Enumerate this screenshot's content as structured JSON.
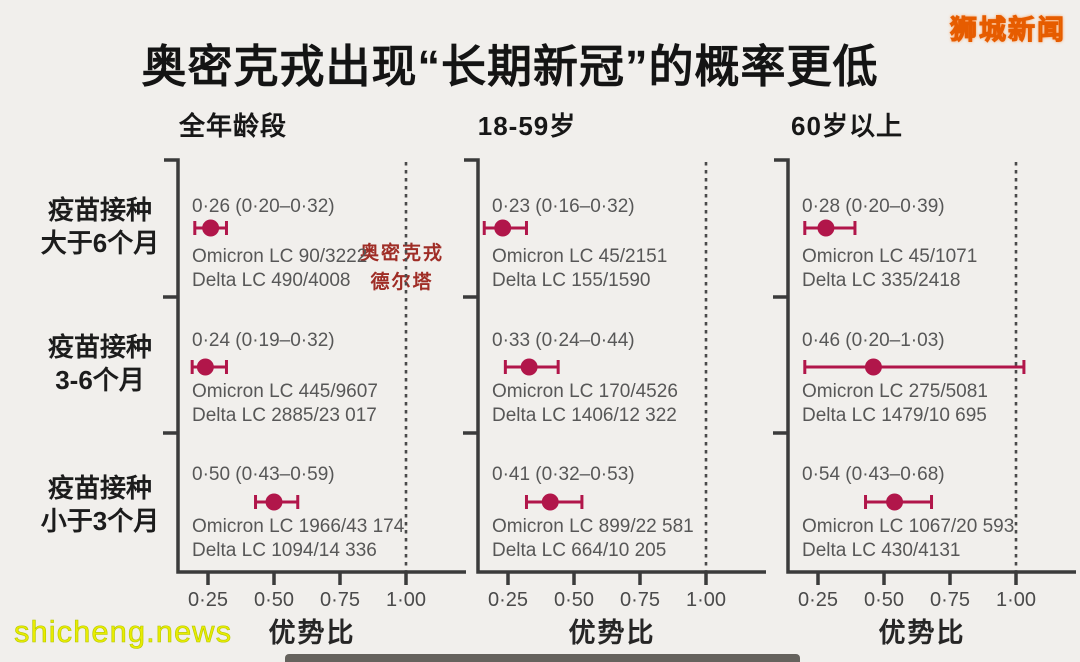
{
  "page": {
    "title": "奥密克戎出现“长期新冠”的概率更低",
    "watermark_top_right": "狮城新闻",
    "watermark_bottom_left": "shicheng.news"
  },
  "row_labels": [
    {
      "line1": "疫苗接种",
      "line2": "大于6个月"
    },
    {
      "line1": "疫苗接种",
      "line2": "3-6个月"
    },
    {
      "line1": "疫苗接种",
      "line2": "小于3个月"
    }
  ],
  "annotation": {
    "line1": "奥密克戎",
    "line2": "德尔塔"
  },
  "chart_data": {
    "type": "scatter",
    "subtype": "forest-plot",
    "title": "奥密克戎出现“长期新冠”的概率更低",
    "xlabel": "优势比",
    "ylabel": "",
    "x_ticks": [
      "0·25",
      "0·50",
      "0·75",
      "1·00"
    ],
    "x_tick_values": [
      0.25,
      0.5,
      0.75,
      1.0
    ],
    "reference_line": 1.0,
    "xlim": [
      0.14,
      1.22
    ],
    "grid": false,
    "colors": {
      "marker": "#b1164a",
      "axis": "#3b3b3b",
      "dashed": "#4a4a4a",
      "text": "#575757",
      "annotation": "#9f2d26"
    },
    "panels": [
      {
        "header": "全年龄段",
        "rows": [
          {
            "estimate_label": "0·26 (0·20–0·32)",
            "mid": 0.26,
            "lo": 0.2,
            "hi": 0.32,
            "omicron": "Omicron LC 90/3222",
            "delta": "Delta LC 490/4008"
          },
          {
            "estimate_label": "0·24 (0·19–0·32)",
            "mid": 0.24,
            "lo": 0.19,
            "hi": 0.32,
            "omicron": "Omicron LC 445/9607",
            "delta": "Delta LC 2885/23 017"
          },
          {
            "estimate_label": "0·50 (0·43–0·59)",
            "mid": 0.5,
            "lo": 0.43,
            "hi": 0.59,
            "omicron": "Omicron LC 1966/43 174",
            "delta": "Delta LC 1094/14 336"
          }
        ]
      },
      {
        "header": "18-59岁",
        "rows": [
          {
            "estimate_label": "0·23 (0·16–0·32)",
            "mid": 0.23,
            "lo": 0.16,
            "hi": 0.32,
            "omicron": "Omicron LC 45/2151",
            "delta": "Delta LC 155/1590"
          },
          {
            "estimate_label": "0·33 (0·24–0·44)",
            "mid": 0.33,
            "lo": 0.24,
            "hi": 0.44,
            "omicron": "Omicron LC 170/4526",
            "delta": "Delta LC 1406/12 322"
          },
          {
            "estimate_label": "0·41 (0·32–0·53)",
            "mid": 0.41,
            "lo": 0.32,
            "hi": 0.53,
            "omicron": "Omicron LC 899/22 581",
            "delta": "Delta LC 664/10 205"
          }
        ]
      },
      {
        "header": "60岁以上",
        "rows": [
          {
            "estimate_label": "0·28 (0·20–0·39)",
            "mid": 0.28,
            "lo": 0.2,
            "hi": 0.39,
            "omicron": "Omicron LC 45/1071",
            "delta": "Delta LC 335/2418"
          },
          {
            "estimate_label": "0·46 (0·20–1·03)",
            "mid": 0.46,
            "lo": 0.2,
            "hi": 1.03,
            "omicron": "Omicron LC 275/5081",
            "delta": "Delta LC 1479/10 695"
          },
          {
            "estimate_label": "0·54 (0·43–0·68)",
            "mid": 0.54,
            "lo": 0.43,
            "hi": 0.68,
            "omicron": "Omicron LC 1067/20 593",
            "delta": "Delta LC 430/4131"
          }
        ]
      }
    ]
  }
}
